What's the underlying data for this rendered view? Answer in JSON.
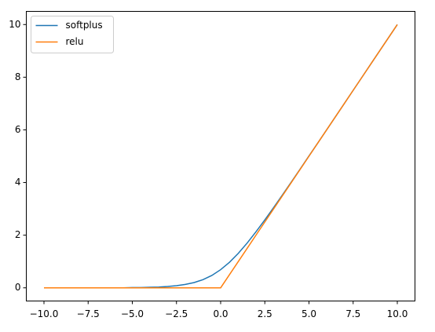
{
  "chart_data": {
    "type": "line",
    "x": [
      -10,
      -9.5,
      -9,
      -8.5,
      -8,
      -7.5,
      -7,
      -6.5,
      -6,
      -5.5,
      -5,
      -4.5,
      -4,
      -3.5,
      -3,
      -2.5,
      -2,
      -1.5,
      -1,
      -0.5,
      0,
      0.5,
      1,
      1.5,
      2,
      2.5,
      3,
      3.5,
      4,
      4.5,
      5,
      5.5,
      6,
      6.5,
      7,
      7.5,
      8,
      8.5,
      9,
      9.5,
      10
    ],
    "series": [
      {
        "name": "softplus",
        "color": "#1f77b4",
        "values": [
          0,
          0,
          0,
          0,
          0,
          0,
          0,
          0,
          0,
          0,
          0.01,
          0.01,
          0.02,
          0.03,
          0.05,
          0.08,
          0.13,
          0.2,
          0.31,
          0.47,
          0.69,
          0.97,
          1.31,
          1.7,
          2.13,
          2.58,
          3.05,
          3.53,
          4.02,
          4.51,
          5.01,
          5.5,
          6,
          6.5,
          7,
          7.5,
          8,
          8.5,
          9,
          9.5,
          10
        ]
      },
      {
        "name": "relu",
        "color": "#ff7f0e",
        "values": [
          0,
          0,
          0,
          0,
          0,
          0,
          0,
          0,
          0,
          0,
          0,
          0,
          0,
          0,
          0,
          0,
          0,
          0,
          0,
          0,
          0,
          0.5,
          1,
          1.5,
          2,
          2.5,
          3,
          3.5,
          4,
          4.5,
          5,
          5.5,
          6,
          6.5,
          7,
          7.5,
          8,
          8.5,
          9,
          9.5,
          10
        ]
      }
    ],
    "xlim": [
      -11,
      11
    ],
    "ylim": [
      -0.5,
      10.5
    ],
    "xticks": [
      {
        "value": -10,
        "label": "−10.0"
      },
      {
        "value": -7.5,
        "label": "−7.5"
      },
      {
        "value": -5,
        "label": "−5.0"
      },
      {
        "value": -2.5,
        "label": "−2.5"
      },
      {
        "value": 0,
        "label": "0.0"
      },
      {
        "value": 2.5,
        "label": "2.5"
      },
      {
        "value": 5,
        "label": "5.0"
      },
      {
        "value": 7.5,
        "label": "7.5"
      },
      {
        "value": 10,
        "label": "10.0"
      }
    ],
    "yticks": [
      0,
      2,
      4,
      6,
      8,
      10
    ],
    "legend": "upper left"
  }
}
